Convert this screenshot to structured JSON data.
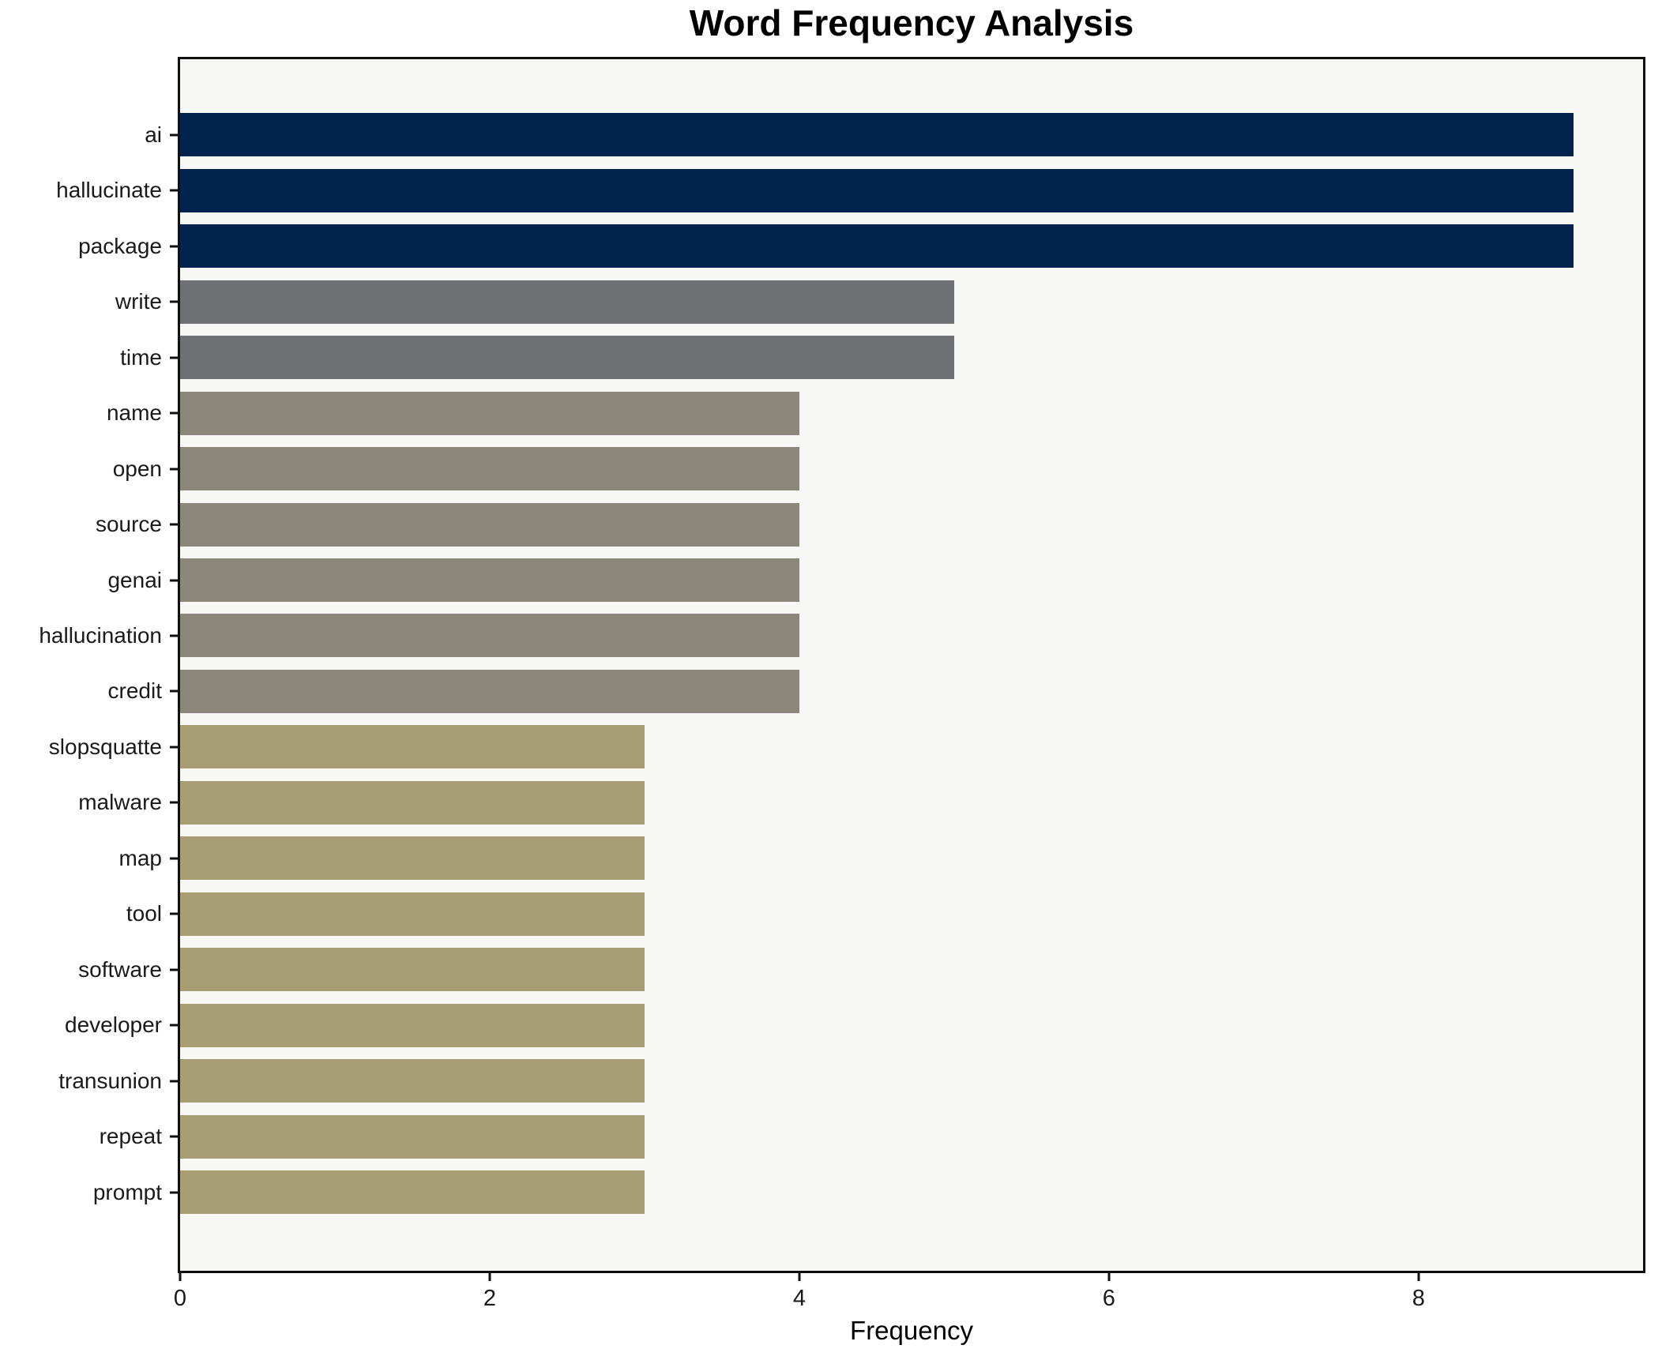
{
  "chart_data": {
    "type": "bar",
    "orientation": "horizontal",
    "title": "Word Frequency Analysis",
    "xlabel": "Frequency",
    "ylabel": "",
    "categories": [
      "ai",
      "hallucinate",
      "package",
      "write",
      "time",
      "name",
      "open",
      "source",
      "genai",
      "hallucination",
      "credit",
      "slopsquatte",
      "malware",
      "map",
      "tool",
      "software",
      "developer",
      "transunion",
      "repeat",
      "prompt"
    ],
    "values": [
      9,
      9,
      9,
      5,
      5,
      4,
      4,
      4,
      4,
      4,
      4,
      3,
      3,
      3,
      3,
      3,
      3,
      3,
      3,
      3
    ],
    "bar_colors": [
      "#02234d",
      "#02234d",
      "#02234d",
      "#707174",
      "#707174",
      "#8b877a",
      "#8b877a",
      "#8b877a",
      "#8b877a",
      "#8b877a",
      "#8b877a",
      "#a89e73",
      "#a89e73",
      "#a89e73",
      "#a89e73",
      "#a89e73",
      "#a89e73",
      "#a89e73",
      "#a89e73",
      "#a89e73"
    ],
    "palette_by_value": {
      "9": "#02234d",
      "5": "#707174",
      "4": "#8b877a",
      "3": "#a89e73"
    },
    "x_ticks": [
      0,
      2,
      4,
      6,
      8
    ],
    "xlim": [
      0,
      9.45
    ],
    "grid": false,
    "legend": false,
    "plot_background": "#f7f7f6",
    "figure_background": "#ffffff",
    "frame_color": "#101010"
  }
}
